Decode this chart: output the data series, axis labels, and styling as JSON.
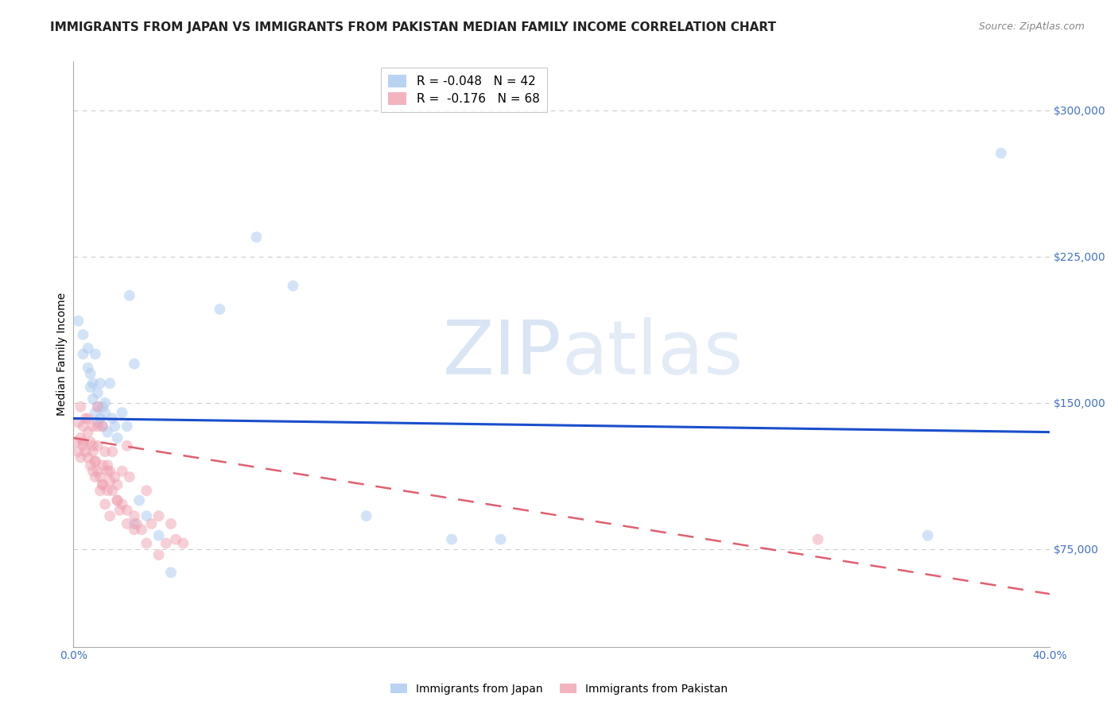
{
  "title": "IMMIGRANTS FROM JAPAN VS IMMIGRANTS FROM PAKISTAN MEDIAN FAMILY INCOME CORRELATION CHART",
  "source": "Source: ZipAtlas.com",
  "xlabel": "",
  "ylabel": "Median Family Income",
  "xlim": [
    0.0,
    0.4
  ],
  "ylim": [
    25000,
    325000
  ],
  "yticks": [
    75000,
    150000,
    225000,
    300000
  ],
  "ytick_labels": [
    "$75,000",
    "$150,000",
    "$225,000",
    "$300,000"
  ],
  "xticks": [
    0.0,
    0.1,
    0.2,
    0.3,
    0.4
  ],
  "xtick_labels": [
    "0.0%",
    "",
    "",
    "",
    "40.0%"
  ],
  "background_color": "#ffffff",
  "watermark_zip": "ZIP",
  "watermark_atlas": "atlas",
  "japan_color": "#a8c8f0",
  "pakistan_color": "#f0a0b0",
  "japan_trend_color": "#1a4fcc",
  "pakistan_trend_color": "#e06070",
  "japan_trend_linestyle": "solid",
  "pakistan_trend_linestyle": "dashed",
  "japan_trend_x": [
    0.0,
    0.4
  ],
  "japan_trend_y": [
    142000,
    135000
  ],
  "pakistan_trend_x": [
    0.0,
    0.4
  ],
  "pakistan_trend_y": [
    132000,
    52000
  ],
  "japan_x": [
    0.002,
    0.004,
    0.004,
    0.006,
    0.006,
    0.007,
    0.007,
    0.008,
    0.008,
    0.009,
    0.009,
    0.01,
    0.01,
    0.01,
    0.011,
    0.011,
    0.012,
    0.012,
    0.013,
    0.013,
    0.014,
    0.015,
    0.016,
    0.017,
    0.018,
    0.02,
    0.022,
    0.023,
    0.025,
    0.027,
    0.03,
    0.035,
    0.06,
    0.075,
    0.09,
    0.12,
    0.155,
    0.175,
    0.35,
    0.38,
    0.025,
    0.04
  ],
  "japan_y": [
    192000,
    175000,
    185000,
    168000,
    178000,
    158000,
    165000,
    160000,
    152000,
    145000,
    175000,
    148000,
    140000,
    155000,
    160000,
    142000,
    148000,
    138000,
    145000,
    150000,
    135000,
    160000,
    142000,
    138000,
    132000,
    145000,
    138000,
    205000,
    170000,
    100000,
    92000,
    82000,
    198000,
    235000,
    210000,
    92000,
    80000,
    80000,
    82000,
    278000,
    88000,
    63000
  ],
  "pakistan_x": [
    0.001,
    0.002,
    0.002,
    0.003,
    0.003,
    0.004,
    0.004,
    0.005,
    0.005,
    0.006,
    0.006,
    0.007,
    0.007,
    0.008,
    0.008,
    0.008,
    0.009,
    0.009,
    0.01,
    0.01,
    0.01,
    0.011,
    0.011,
    0.012,
    0.012,
    0.013,
    0.013,
    0.014,
    0.014,
    0.015,
    0.015,
    0.016,
    0.017,
    0.018,
    0.019,
    0.02,
    0.02,
    0.022,
    0.023,
    0.025,
    0.026,
    0.028,
    0.03,
    0.032,
    0.035,
    0.038,
    0.04,
    0.042,
    0.045,
    0.022,
    0.018,
    0.016,
    0.014,
    0.012,
    0.01,
    0.008,
    0.006,
    0.004,
    0.003,
    0.025,
    0.03,
    0.035,
    0.022,
    0.018,
    0.015,
    0.012,
    0.009,
    0.305
  ],
  "pakistan_y": [
    130000,
    140000,
    125000,
    148000,
    132000,
    138000,
    128000,
    142000,
    125000,
    135000,
    122000,
    130000,
    118000,
    125000,
    115000,
    138000,
    120000,
    112000,
    128000,
    115000,
    138000,
    112000,
    105000,
    118000,
    108000,
    125000,
    98000,
    115000,
    105000,
    110000,
    92000,
    105000,
    112000,
    100000,
    95000,
    115000,
    98000,
    128000,
    112000,
    92000,
    88000,
    85000,
    105000,
    88000,
    92000,
    78000,
    88000,
    80000,
    78000,
    95000,
    108000,
    125000,
    118000,
    138000,
    148000,
    128000,
    142000,
    130000,
    122000,
    85000,
    78000,
    72000,
    88000,
    100000,
    115000,
    108000,
    120000,
    80000
  ],
  "marker_size": 100,
  "marker_alpha": 0.5,
  "grid_color": "#cccccc",
  "grid_linestyle": "--",
  "title_fontsize": 11,
  "source_fontsize": 9,
  "ylabel_fontsize": 10,
  "tick_fontsize": 10,
  "legend_label_japan": "R = -0.048   N = 42",
  "legend_label_pakistan": "R =  -0.176   N = 68",
  "bottom_legend_japan": "Immigrants from Japan",
  "bottom_legend_pakistan": "Immigrants from Pakistan"
}
